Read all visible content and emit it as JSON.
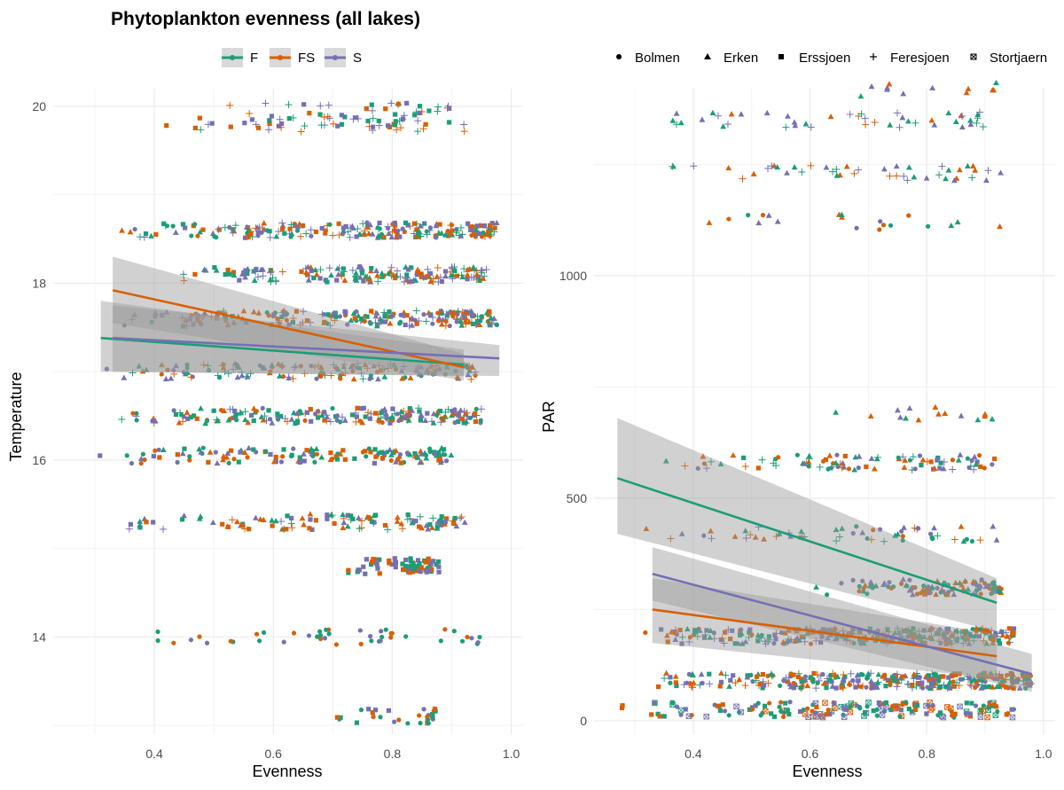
{
  "title": "Phytoplankton evenness (all lakes)",
  "colors": {
    "F": "#1b9e77",
    "FS": "#d95f02",
    "S": "#7570b3",
    "ribbon": "#999999",
    "grid": "#ebebeb"
  },
  "legend_color": [
    {
      "key": "F",
      "label": "F"
    },
    {
      "key": "FS",
      "label": "FS"
    },
    {
      "key": "S",
      "label": "S"
    }
  ],
  "legend_shape": [
    {
      "shape": "circle",
      "label": "Bolmen"
    },
    {
      "shape": "triangle",
      "label": "Erken"
    },
    {
      "shape": "square",
      "label": "Erssjoen"
    },
    {
      "shape": "plus",
      "label": "Feresjoen"
    },
    {
      "shape": "boxtimes",
      "label": "Stortjaern"
    }
  ],
  "chart_data": [
    {
      "type": "scatter",
      "xlabel": "Evenness",
      "ylabel": "Temperature",
      "xlim": [
        0.23,
        1.02
      ],
      "ylim": [
        12.9,
        20.2
      ],
      "xticks": [
        0.4,
        0.6,
        0.8,
        1.0
      ],
      "xtick_labels": [
        "0.4",
        "0.6",
        "0.8",
        "1.0"
      ],
      "yticks": [
        14,
        16,
        18,
        20
      ],
      "ytick_labels": [
        "14",
        "16",
        "18",
        "20"
      ],
      "grid": true,
      "legend": "top",
      "point_bands": [
        {
          "y": 19.8,
          "x": [
            0.33,
            0.93
          ],
          "n": 55,
          "lakes": [
            "Feresjoen",
            "Erssjoen"
          ]
        },
        {
          "y": 19.95,
          "x": [
            0.48,
            0.9
          ],
          "n": 35,
          "lakes": [
            "Erssjoen",
            "Feresjoen"
          ]
        },
        {
          "y": 18.6,
          "x": [
            0.33,
            0.98
          ],
          "n": 220,
          "lakes": [
            "Erken",
            "Erssjoen",
            "Feresjoen",
            "Bolmen"
          ]
        },
        {
          "y": 18.1,
          "x": [
            0.4,
            0.96
          ],
          "n": 170,
          "lakes": [
            "Erken",
            "Erssjoen",
            "Feresjoen"
          ]
        },
        {
          "y": 17.6,
          "x": [
            0.33,
            0.98
          ],
          "n": 220,
          "lakes": [
            "Feresjoen",
            "Erken",
            "Erssjoen",
            "Bolmen"
          ]
        },
        {
          "y": 17.0,
          "x": [
            0.3,
            0.95
          ],
          "n": 150,
          "lakes": [
            "Erken",
            "Feresjoen",
            "Bolmen"
          ]
        },
        {
          "y": 16.5,
          "x": [
            0.33,
            0.95
          ],
          "n": 200,
          "lakes": [
            "Feresjoen",
            "Erken",
            "Bolmen",
            "Erssjoen"
          ]
        },
        {
          "y": 16.05,
          "x": [
            0.3,
            0.9
          ],
          "n": 140,
          "lakes": [
            "Erken",
            "Bolmen",
            "Erssjoen"
          ]
        },
        {
          "y": 15.3,
          "x": [
            0.3,
            0.93
          ],
          "n": 110,
          "lakes": [
            "Erken",
            "Feresjoen",
            "Erssjoen"
          ]
        },
        {
          "y": 14.8,
          "x": [
            0.72,
            0.88
          ],
          "n": 70,
          "lakes": [
            "Erssjoen"
          ]
        },
        {
          "y": 14.0,
          "x": [
            0.38,
            0.95
          ],
          "n": 45,
          "lakes": [
            "Bolmen"
          ]
        },
        {
          "y": 13.1,
          "x": [
            0.7,
            0.88
          ],
          "n": 30,
          "lakes": [
            "Erssjoen",
            "Bolmen"
          ]
        }
      ],
      "series": [
        {
          "name": "F",
          "line": [
            [
              0.31,
              17.38
            ],
            [
              0.92,
              17.08
            ]
          ],
          "ci_low": [
            17.0,
            16.95
          ],
          "ci_high": [
            17.8,
            17.25
          ]
        },
        {
          "name": "FS",
          "line": [
            [
              0.33,
              17.92
            ],
            [
              0.92,
              17.05
            ]
          ],
          "ci_low": [
            17.55,
            16.9
          ],
          "ci_high": [
            18.3,
            17.2
          ]
        },
        {
          "name": "S",
          "line": [
            [
              0.33,
              17.38
            ],
            [
              0.98,
              17.15
            ]
          ],
          "ci_low": [
            17.0,
            16.95
          ],
          "ci_high": [
            17.75,
            17.3
          ]
        }
      ]
    },
    {
      "type": "scatter",
      "xlabel": "Evenness",
      "ylabel": "PAR",
      "xlim": [
        0.23,
        1.02
      ],
      "ylim": [
        -30,
        1420
      ],
      "xticks": [
        0.4,
        0.6,
        0.8,
        1.0
      ],
      "xtick_labels": [
        "0.4",
        "0.6",
        "0.8",
        "1.0"
      ],
      "yticks": [
        0,
        500,
        1000
      ],
      "ytick_labels": [
        "0",
        "500",
        "1000"
      ],
      "grid": true,
      "legend": "top",
      "point_bands": [
        {
          "y": 1420,
          "x": [
            0.6,
            0.93
          ],
          "n": 12,
          "lakes": [
            "Erken"
          ]
        },
        {
          "y": 1350,
          "x": [
            0.3,
            0.9
          ],
          "n": 45,
          "lakes": [
            "Erken",
            "Feresjoen"
          ]
        },
        {
          "y": 1230,
          "x": [
            0.33,
            0.93
          ],
          "n": 45,
          "lakes": [
            "Erken",
            "Feresjoen"
          ]
        },
        {
          "y": 1120,
          "x": [
            0.33,
            0.93
          ],
          "n": 20,
          "lakes": [
            "Erken",
            "Bolmen"
          ]
        },
        {
          "y": 690,
          "x": [
            0.62,
            0.92
          ],
          "n": 15,
          "lakes": [
            "Erken"
          ]
        },
        {
          "y": 580,
          "x": [
            0.35,
            0.92
          ],
          "n": 90,
          "lakes": [
            "Feresjoen",
            "Erken",
            "Bolmen",
            "Erssjoen"
          ]
        },
        {
          "y": 420,
          "x": [
            0.3,
            0.93
          ],
          "n": 55,
          "lakes": [
            "Erken",
            "Feresjoen",
            "Bolmen"
          ]
        },
        {
          "y": 300,
          "x": [
            0.6,
            0.93
          ],
          "n": 110,
          "lakes": [
            "Bolmen",
            "Erken"
          ]
        },
        {
          "y": 190,
          "x": [
            0.3,
            0.95
          ],
          "n": 300,
          "lakes": [
            "Bolmen",
            "Erken",
            "Erssjoen",
            "Feresjoen"
          ]
        },
        {
          "y": 90,
          "x": [
            0.33,
            0.98
          ],
          "n": 330,
          "lakes": [
            "Bolmen",
            "Erken",
            "Erssjoen",
            "Feresjoen"
          ]
        },
        {
          "y": 25,
          "x": [
            0.27,
            0.95
          ],
          "n": 180,
          "lakes": [
            "Stortjaern",
            "Bolmen",
            "Erssjoen"
          ]
        }
      ],
      "series": [
        {
          "name": "F",
          "line": [
            [
              0.27,
              545
            ],
            [
              0.92,
              265
            ]
          ],
          "ci_low": [
            420,
            200
          ],
          "ci_high": [
            680,
            320
          ]
        },
        {
          "name": "FS",
          "line": [
            [
              0.33,
              250
            ],
            [
              0.92,
              145
            ]
          ],
          "ci_low": [
            175,
            95
          ],
          "ci_high": [
            320,
            195
          ]
        },
        {
          "name": "S",
          "line": [
            [
              0.33,
              330
            ],
            [
              0.98,
              105
            ]
          ],
          "ci_low": [
            270,
            65
          ],
          "ci_high": [
            390,
            150
          ]
        }
      ]
    }
  ]
}
